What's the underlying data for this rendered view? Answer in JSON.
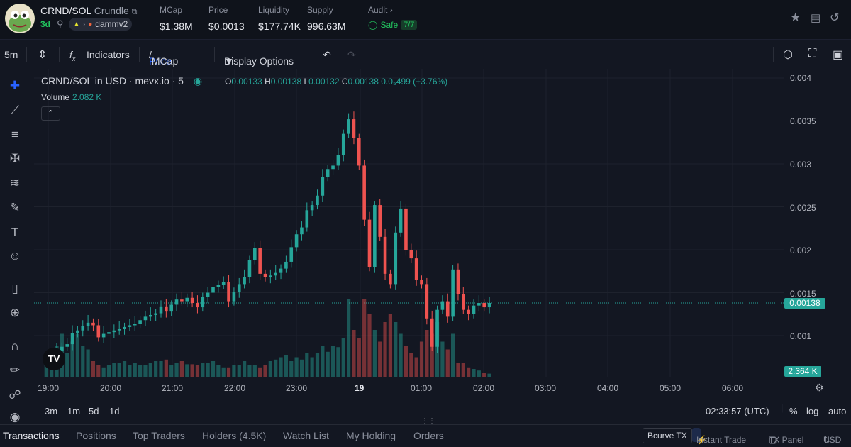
{
  "header": {
    "pair": "CRND/SOL",
    "name": "Crundle",
    "age": "3d",
    "dex": "dammv2",
    "stats": [
      {
        "label": "MCap",
        "value": "$1.38M"
      },
      {
        "label": "Price",
        "value": "$0.0013"
      },
      {
        "label": "Liquidity",
        "value": "$177.74K"
      },
      {
        "label": "Supply",
        "value": "996.63M"
      }
    ],
    "audit_label": "Audit",
    "safe_label": "Safe",
    "safe_count": "7/7"
  },
  "toolbar": {
    "interval": "5m",
    "indicators": "Indicators",
    "price_label": "Price",
    "mcap_label": "MCap",
    "display_options": "Display Options"
  },
  "chart_header": {
    "title": "CRND/SOL in USD · mevx.io · 5",
    "o": "0.00133",
    "h": "0.00138",
    "l": "0.00132",
    "c": "0.00138",
    "change": "0.0₅499 (+3.76%)",
    "volume_label": "Volume",
    "volume_value": "2.082 K"
  },
  "price_tag": "0.00138",
  "volume_tag": "2.364 K",
  "time_display": "02:33:57 (UTC)",
  "ranges": [
    "3m",
    "1m",
    "5d",
    "1d"
  ],
  "scale_options": [
    "%",
    "log",
    "auto"
  ],
  "tabs": [
    "Transactions",
    "Positions",
    "Top Traders",
    "Holders (4.5K)",
    "Watch List",
    "My Holding",
    "Orders"
  ],
  "bottom_buttons": {
    "bcurve": "Bcurve TX",
    "instant": "Instant Trade",
    "txpanel": "TX Panel",
    "usd": "USD"
  },
  "colors": {
    "up": "#26a69a",
    "down": "#ef5350",
    "bg": "#131722",
    "accent": "#2962ff"
  },
  "chart_data": {
    "type": "candlestick",
    "title": "CRND/SOL in USD · mevx.io · 5",
    "interval": "5m",
    "x_tick_labels": [
      "19:00",
      "20:00",
      "21:00",
      "22:00",
      "23:00",
      "19",
      "01:00",
      "02:00",
      "03:00",
      "04:00",
      "05:00",
      "06:00"
    ],
    "y_tick_labels": [
      "0.004",
      "0.0035",
      "0.003",
      "0.0025",
      "0.002",
      "0.0015",
      "0.001"
    ],
    "ylim": [
      0.0006,
      0.004
    ],
    "last_price": 0.00138,
    "close_approx": [
      0.00074,
      0.00078,
      0.00082,
      0.00087,
      0.0009,
      0.00103,
      0.00106,
      0.00111,
      0.00115,
      0.00112,
      0.00098,
      0.00102,
      0.00104,
      0.00106,
      0.00108,
      0.0011,
      0.00112,
      0.00114,
      0.00118,
      0.00122,
      0.00124,
      0.00126,
      0.00134,
      0.00128,
      0.00136,
      0.00142,
      0.0014,
      0.00144,
      0.00138,
      0.00133,
      0.00145,
      0.0015,
      0.00157,
      0.00159,
      0.00162,
      0.0014,
      0.00151,
      0.0016,
      0.00168,
      0.00188,
      0.00202,
      0.00172,
      0.00168,
      0.0017,
      0.00173,
      0.00178,
      0.00186,
      0.00203,
      0.00218,
      0.00226,
      0.00246,
      0.00252,
      0.00263,
      0.00285,
      0.00294,
      0.00298,
      0.0031,
      0.00335,
      0.00352,
      0.0033,
      0.00298,
      0.00235,
      0.0018,
      0.00252,
      0.00215,
      0.00172,
      0.0016,
      0.0022,
      0.00248,
      0.002,
      0.0019,
      0.00165,
      0.0016,
      0.0012,
      0.00087,
      0.0013,
      0.0014,
      0.00122,
      0.00177,
      0.00148,
      0.0013,
      0.00125,
      0.00135,
      0.00138,
      0.00133,
      0.00138
    ],
    "volume_relative": [
      0.15,
      0.28,
      0.4,
      0.55,
      0.3,
      0.45,
      0.55,
      0.4,
      0.35,
      0.2,
      0.15,
      0.12,
      0.15,
      0.18,
      0.18,
      0.2,
      0.15,
      0.18,
      0.15,
      0.15,
      0.18,
      0.2,
      0.2,
      0.22,
      0.15,
      0.18,
      0.2,
      0.16,
      0.16,
      0.15,
      0.18,
      0.18,
      0.2,
      0.15,
      0.12,
      0.12,
      0.15,
      0.15,
      0.2,
      0.15,
      0.15,
      0.12,
      0.15,
      0.2,
      0.22,
      0.25,
      0.28,
      0.2,
      0.25,
      0.22,
      0.3,
      0.25,
      0.3,
      0.4,
      0.32,
      0.4,
      0.38,
      0.5,
      1.0,
      0.6,
      0.5,
      1.0,
      0.8,
      0.6,
      0.45,
      0.7,
      0.8,
      0.7,
      0.55,
      0.4,
      0.3,
      0.25,
      0.45,
      0.6,
      0.55,
      0.7,
      0.45,
      0.35,
      0.55,
      0.18,
      0.18,
      0.12,
      0.1,
      0.08,
      0.05,
      0.04
    ],
    "volume_axis_label": "Volume"
  }
}
